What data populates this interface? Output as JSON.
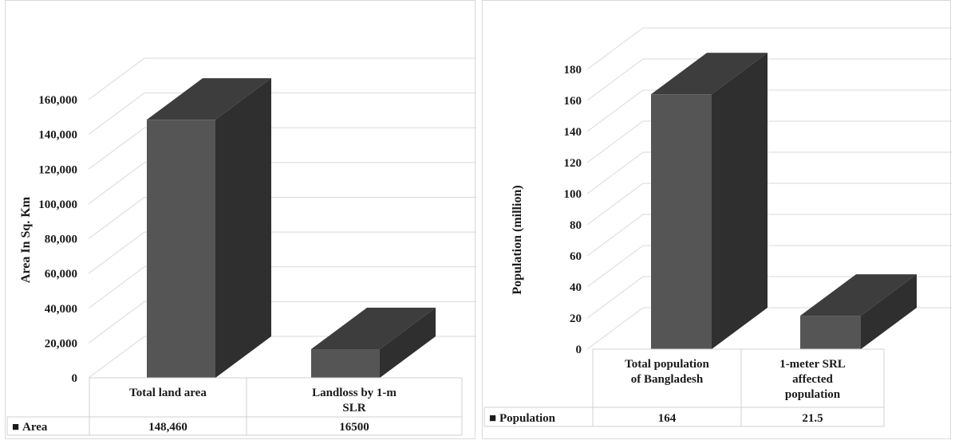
{
  "top_fragment": "y",
  "colors": {
    "bar_front": "#555555",
    "bar_top": "#3d3d3d",
    "bar_side": "#2f2f2f",
    "grid": "#d9d9d9"
  },
  "chart_data": [
    {
      "type": "bar",
      "ylabel": "Area In Sq. Km",
      "ylim": [
        0,
        160000
      ],
      "yticks": [
        "0",
        "20,000",
        "40,000",
        "60,000",
        "80,000",
        "100,000",
        "120,000",
        "140,000",
        "160,000"
      ],
      "categories": [
        "Total land area",
        "Landloss by 1-m SLR"
      ],
      "series": [
        {
          "name": "Area",
          "values": [
            148460,
            16500
          ]
        }
      ],
      "table_values": [
        "148,460",
        "16500"
      ],
      "legend_marker": "■"
    },
    {
      "type": "bar",
      "ylabel": "Population (million)",
      "ylim": [
        0,
        180
      ],
      "yticks": [
        "0",
        "20",
        "40",
        "60",
        "80",
        "100",
        "120",
        "140",
        "160",
        "180"
      ],
      "categories": [
        "Total population of Bangladesh",
        "1-meter SRL affected population"
      ],
      "series": [
        {
          "name": "Population",
          "values": [
            164,
            21.5
          ]
        }
      ],
      "table_values": [
        "164",
        "21.5"
      ],
      "legend_marker": "■"
    }
  ]
}
